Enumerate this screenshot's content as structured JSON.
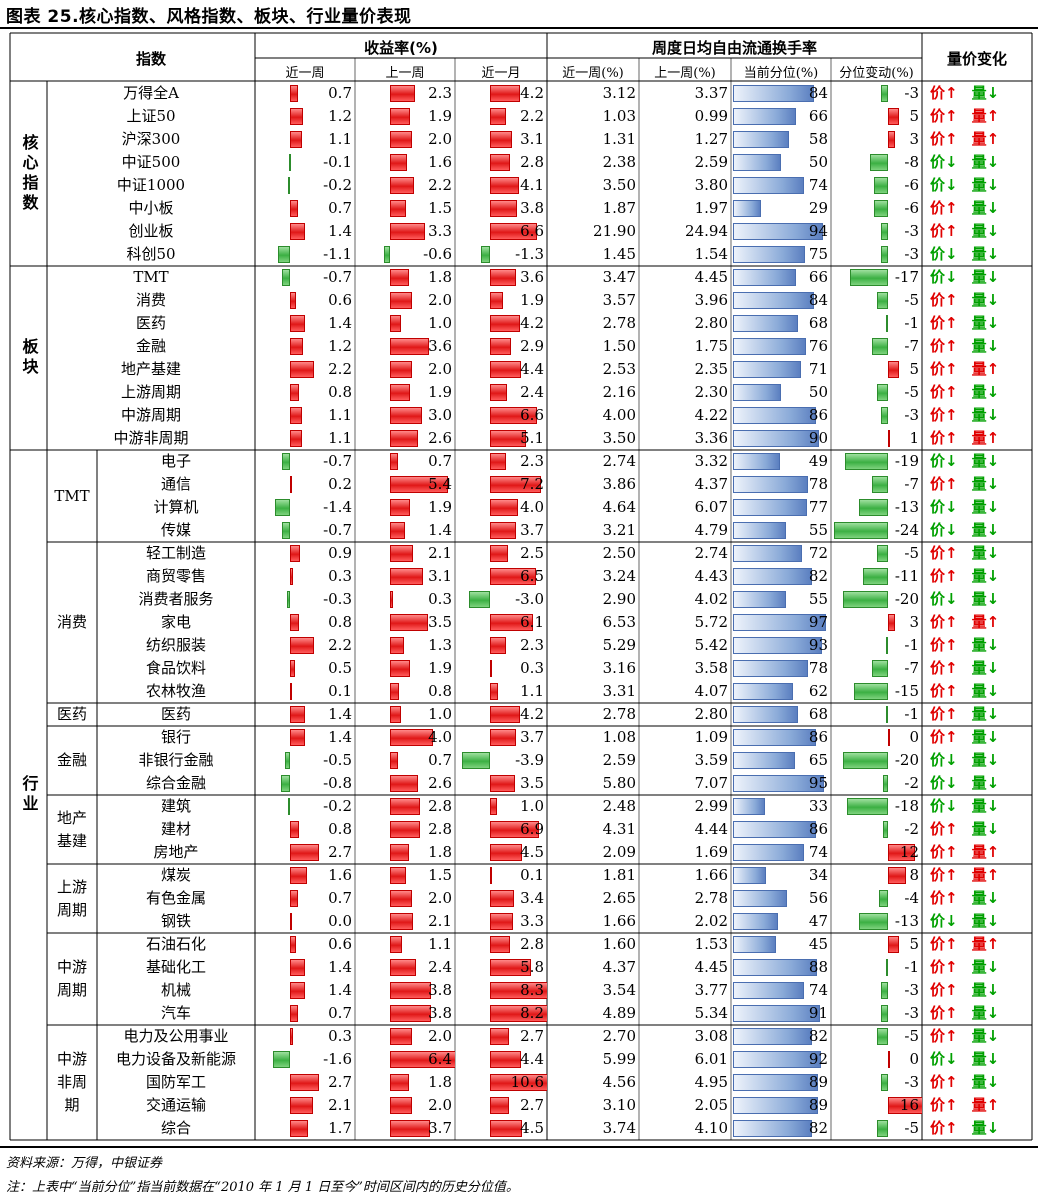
{
  "title": "图表 25.核心指数、风格指数、板块、行业量价表现",
  "headers": {
    "index": "指数",
    "returns": "收益率(%)",
    "turnover": "周度日均自由流通换手率",
    "pricevol": "量价变化",
    "ret_cols": [
      "近一周",
      "上一周",
      "近一月"
    ],
    "to_cols": [
      "近一周(%)",
      "上一周(%)",
      "当前分位(%)",
      "分位变动(%)"
    ]
  },
  "labels": {
    "price": "价",
    "volume": "量",
    "up": "↑",
    "down": "↓"
  },
  "sections": [
    {
      "name": "核心指数",
      "vertical": true,
      "start": 0,
      "end": 8
    },
    {
      "name": "板块",
      "vertical": true,
      "start": 8,
      "end": 16
    },
    {
      "name": "行业",
      "vertical": true,
      "start": 16,
      "end": 46
    }
  ],
  "subgroups": [
    {
      "name": "TMT",
      "start": 16,
      "end": 20
    },
    {
      "name": "消费",
      "start": 20,
      "end": 27
    },
    {
      "name": "医药",
      "start": 27,
      "end": 28
    },
    {
      "name": "金融",
      "start": 28,
      "end": 31
    },
    {
      "name": "地产基建",
      "start": 31,
      "end": 34
    },
    {
      "name": "上游周期",
      "start": 34,
      "end": 37
    },
    {
      "name": "中游周期",
      "start": 37,
      "end": 41
    },
    {
      "name": "中游非周期",
      "start": 41,
      "end": 46
    }
  ],
  "rows": [
    {
      "name": "万得全A",
      "r1w": 0.7,
      "rp1w": 2.3,
      "r1m": 4.2,
      "t1w": "3.12",
      "tp1w": "3.37",
      "pct": 84,
      "chg": -3,
      "p": "up",
      "v": "down"
    },
    {
      "name": "上证50",
      "r1w": 1.2,
      "rp1w": 1.9,
      "r1m": 2.2,
      "t1w": "1.03",
      "tp1w": "0.99",
      "pct": 66,
      "chg": 5,
      "p": "up",
      "v": "up"
    },
    {
      "name": "沪深300",
      "r1w": 1.1,
      "rp1w": 2.0,
      "r1m": 3.1,
      "t1w": "1.31",
      "tp1w": "1.27",
      "pct": 58,
      "chg": 3,
      "p": "up",
      "v": "up"
    },
    {
      "name": "中证500",
      "r1w": -0.1,
      "rp1w": 1.6,
      "r1m": 2.8,
      "t1w": "2.38",
      "tp1w": "2.59",
      "pct": 50,
      "chg": -8,
      "p": "down",
      "v": "down"
    },
    {
      "name": "中证1000",
      "r1w": -0.2,
      "rp1w": 2.2,
      "r1m": 4.1,
      "t1w": "3.50",
      "tp1w": "3.80",
      "pct": 74,
      "chg": -6,
      "p": "down",
      "v": "down"
    },
    {
      "name": "中小板",
      "r1w": 0.7,
      "rp1w": 1.5,
      "r1m": 3.8,
      "t1w": "1.87",
      "tp1w": "1.97",
      "pct": 29,
      "chg": -6,
      "p": "up",
      "v": "down"
    },
    {
      "name": "创业板",
      "r1w": 1.4,
      "rp1w": 3.3,
      "r1m": 6.6,
      "t1w": "21.90",
      "tp1w": "24.94",
      "pct": 94,
      "chg": -3,
      "p": "up",
      "v": "down"
    },
    {
      "name": "科创50",
      "r1w": -1.1,
      "rp1w": -0.6,
      "r1m": -1.3,
      "t1w": "1.45",
      "tp1w": "1.54",
      "pct": 75,
      "chg": -3,
      "p": "down",
      "v": "down"
    },
    {
      "name": "TMT",
      "r1w": -0.7,
      "rp1w": 1.8,
      "r1m": 3.6,
      "t1w": "3.47",
      "tp1w": "4.45",
      "pct": 66,
      "chg": -17,
      "p": "down",
      "v": "down"
    },
    {
      "name": "消费",
      "r1w": 0.6,
      "rp1w": 2.0,
      "r1m": 1.9,
      "t1w": "3.57",
      "tp1w": "3.96",
      "pct": 84,
      "chg": -5,
      "p": "up",
      "v": "down"
    },
    {
      "name": "医药",
      "r1w": 1.4,
      "rp1w": 1.0,
      "r1m": 4.2,
      "t1w": "2.78",
      "tp1w": "2.80",
      "pct": 68,
      "chg": -1,
      "p": "up",
      "v": "down"
    },
    {
      "name": "金融",
      "r1w": 1.2,
      "rp1w": 3.6,
      "r1m": 2.9,
      "t1w": "1.50",
      "tp1w": "1.75",
      "pct": 76,
      "chg": -7,
      "p": "up",
      "v": "down"
    },
    {
      "name": "地产基建",
      "r1w": 2.2,
      "rp1w": 2.0,
      "r1m": 4.4,
      "t1w": "2.53",
      "tp1w": "2.35",
      "pct": 71,
      "chg": 5,
      "p": "up",
      "v": "up"
    },
    {
      "name": "上游周期",
      "r1w": 0.8,
      "rp1w": 1.9,
      "r1m": 2.4,
      "t1w": "2.16",
      "tp1w": "2.30",
      "pct": 50,
      "chg": -5,
      "p": "up",
      "v": "down"
    },
    {
      "name": "中游周期",
      "r1w": 1.1,
      "rp1w": 3.0,
      "r1m": 6.6,
      "t1w": "4.00",
      "tp1w": "4.22",
      "pct": 86,
      "chg": -3,
      "p": "up",
      "v": "down"
    },
    {
      "name": "中游非周期",
      "r1w": 1.1,
      "rp1w": 2.6,
      "r1m": 5.1,
      "t1w": "3.50",
      "tp1w": "3.36",
      "pct": 90,
      "chg": 1,
      "p": "up",
      "v": "up"
    },
    {
      "name": "电子",
      "r1w": -0.7,
      "rp1w": 0.7,
      "r1m": 2.3,
      "t1w": "2.74",
      "tp1w": "3.32",
      "pct": 49,
      "chg": -19,
      "p": "down",
      "v": "down"
    },
    {
      "name": "通信",
      "r1w": 0.2,
      "rp1w": 5.4,
      "r1m": 7.2,
      "t1w": "3.86",
      "tp1w": "4.37",
      "pct": 78,
      "chg": -7,
      "p": "up",
      "v": "down"
    },
    {
      "name": "计算机",
      "r1w": -1.4,
      "rp1w": 1.9,
      "r1m": 4.0,
      "t1w": "4.64",
      "tp1w": "6.07",
      "pct": 77,
      "chg": -13,
      "p": "down",
      "v": "down"
    },
    {
      "name": "传媒",
      "r1w": -0.7,
      "rp1w": 1.4,
      "r1m": 3.7,
      "t1w": "3.21",
      "tp1w": "4.79",
      "pct": 55,
      "chg": -24,
      "p": "down",
      "v": "down"
    },
    {
      "name": "轻工制造",
      "r1w": 0.9,
      "rp1w": 2.1,
      "r1m": 2.5,
      "t1w": "2.50",
      "tp1w": "2.74",
      "pct": 72,
      "chg": -5,
      "p": "up",
      "v": "down"
    },
    {
      "name": "商贸零售",
      "r1w": 0.3,
      "rp1w": 3.1,
      "r1m": 6.5,
      "t1w": "3.24",
      "tp1w": "4.43",
      "pct": 82,
      "chg": -11,
      "p": "up",
      "v": "down"
    },
    {
      "name": "消费者服务",
      "r1w": -0.3,
      "rp1w": 0.3,
      "r1m": -3.0,
      "t1w": "2.90",
      "tp1w": "4.02",
      "pct": 55,
      "chg": -20,
      "p": "down",
      "v": "down"
    },
    {
      "name": "家电",
      "r1w": 0.8,
      "rp1w": 3.5,
      "r1m": 6.1,
      "t1w": "6.53",
      "tp1w": "5.72",
      "pct": 97,
      "chg": 3,
      "p": "up",
      "v": "up"
    },
    {
      "name": "纺织服装",
      "r1w": 2.2,
      "rp1w": 1.3,
      "r1m": 2.3,
      "t1w": "5.29",
      "tp1w": "5.42",
      "pct": 93,
      "chg": -1,
      "p": "up",
      "v": "down"
    },
    {
      "name": "食品饮料",
      "r1w": 0.5,
      "rp1w": 1.9,
      "r1m": 0.3,
      "t1w": "3.16",
      "tp1w": "3.58",
      "pct": 78,
      "chg": -7,
      "p": "up",
      "v": "down"
    },
    {
      "name": "农林牧渔",
      "r1w": 0.1,
      "rp1w": 0.8,
      "r1m": 1.1,
      "t1w": "3.31",
      "tp1w": "4.07",
      "pct": 62,
      "chg": -15,
      "p": "up",
      "v": "down"
    },
    {
      "name": "医药",
      "r1w": 1.4,
      "rp1w": 1.0,
      "r1m": 4.2,
      "t1w": "2.78",
      "tp1w": "2.80",
      "pct": 68,
      "chg": -1,
      "p": "up",
      "v": "down"
    },
    {
      "name": "银行",
      "r1w": 1.4,
      "rp1w": 4.0,
      "r1m": 3.7,
      "t1w": "1.08",
      "tp1w": "1.09",
      "pct": 86,
      "chg": 0,
      "p": "up",
      "v": "down"
    },
    {
      "name": "非银行金融",
      "r1w": -0.5,
      "rp1w": 0.7,
      "r1m": -3.9,
      "t1w": "2.59",
      "tp1w": "3.59",
      "pct": 65,
      "chg": -20,
      "p": "down",
      "v": "down"
    },
    {
      "name": "综合金融",
      "r1w": -0.8,
      "rp1w": 2.6,
      "r1m": 3.5,
      "t1w": "5.80",
      "tp1w": "7.07",
      "pct": 95,
      "chg": -2,
      "p": "down",
      "v": "down"
    },
    {
      "name": "建筑",
      "r1w": -0.2,
      "rp1w": 2.8,
      "r1m": 1.0,
      "t1w": "2.48",
      "tp1w": "2.99",
      "pct": 33,
      "chg": -18,
      "p": "down",
      "v": "down"
    },
    {
      "name": "建材",
      "r1w": 0.8,
      "rp1w": 2.8,
      "r1m": 6.9,
      "t1w": "4.31",
      "tp1w": "4.44",
      "pct": 86,
      "chg": -2,
      "p": "up",
      "v": "down"
    },
    {
      "name": "房地产",
      "r1w": 2.7,
      "rp1w": 1.8,
      "r1m": 4.5,
      "t1w": "2.09",
      "tp1w": "1.69",
      "pct": 74,
      "chg": 12,
      "p": "up",
      "v": "up"
    },
    {
      "name": "煤炭",
      "r1w": 1.6,
      "rp1w": 1.5,
      "r1m": 0.1,
      "t1w": "1.81",
      "tp1w": "1.66",
      "pct": 34,
      "chg": 8,
      "p": "up",
      "v": "up"
    },
    {
      "name": "有色金属",
      "r1w": 0.7,
      "rp1w": 2.0,
      "r1m": 3.4,
      "t1w": "2.65",
      "tp1w": "2.78",
      "pct": 56,
      "chg": -4,
      "p": "up",
      "v": "down"
    },
    {
      "name": "钢铁",
      "r1w": 0.0,
      "rp1w": 2.1,
      "r1m": 3.3,
      "t1w": "1.66",
      "tp1w": "2.02",
      "pct": 47,
      "chg": -13,
      "p": "down",
      "v": "down"
    },
    {
      "name": "石油石化",
      "r1w": 0.6,
      "rp1w": 1.1,
      "r1m": 2.8,
      "t1w": "1.60",
      "tp1w": "1.53",
      "pct": 45,
      "chg": 5,
      "p": "up",
      "v": "up"
    },
    {
      "name": "基础化工",
      "r1w": 1.4,
      "rp1w": 2.4,
      "r1m": 5.8,
      "t1w": "4.37",
      "tp1w": "4.45",
      "pct": 88,
      "chg": -1,
      "p": "up",
      "v": "down"
    },
    {
      "name": "机械",
      "r1w": 1.4,
      "rp1w": 3.8,
      "r1m": 8.3,
      "t1w": "3.54",
      "tp1w": "3.77",
      "pct": 74,
      "chg": -3,
      "p": "up",
      "v": "down"
    },
    {
      "name": "汽车",
      "r1w": 0.7,
      "rp1w": 3.8,
      "r1m": 8.2,
      "t1w": "4.89",
      "tp1w": "5.34",
      "pct": 91,
      "chg": -3,
      "p": "up",
      "v": "down"
    },
    {
      "name": "电力及公用事业",
      "r1w": 0.3,
      "rp1w": 2.0,
      "r1m": 2.7,
      "t1w": "2.70",
      "tp1w": "3.08",
      "pct": 82,
      "chg": -5,
      "p": "up",
      "v": "down"
    },
    {
      "name": "电力设备及新能源",
      "r1w": -1.6,
      "rp1w": 6.4,
      "r1m": 4.4,
      "t1w": "5.99",
      "tp1w": "6.01",
      "pct": 92,
      "chg": 0,
      "p": "down",
      "v": "down"
    },
    {
      "name": "国防军工",
      "r1w": 2.7,
      "rp1w": 1.8,
      "r1m": 10.6,
      "t1w": "4.56",
      "tp1w": "4.95",
      "pct": 89,
      "chg": -3,
      "p": "up",
      "v": "down"
    },
    {
      "name": "交通运输",
      "r1w": 2.1,
      "rp1w": 2.0,
      "r1m": 2.7,
      "t1w": "3.10",
      "tp1w": "2.05",
      "pct": 89,
      "chg": 16,
      "p": "up",
      "v": "up"
    },
    {
      "name": "综合",
      "r1w": 1.7,
      "rp1w": 3.7,
      "r1m": 4.5,
      "t1w": "3.74",
      "tp1w": "4.10",
      "pct": 82,
      "chg": -5,
      "p": "up",
      "v": "down"
    }
  ],
  "footer": {
    "source": "资料来源：万得，中银证券",
    "note": "注：上表中“当前分位”指当前数据在“2010 年 1 月 1 日至今”时间区间内的历史分位值。"
  }
}
